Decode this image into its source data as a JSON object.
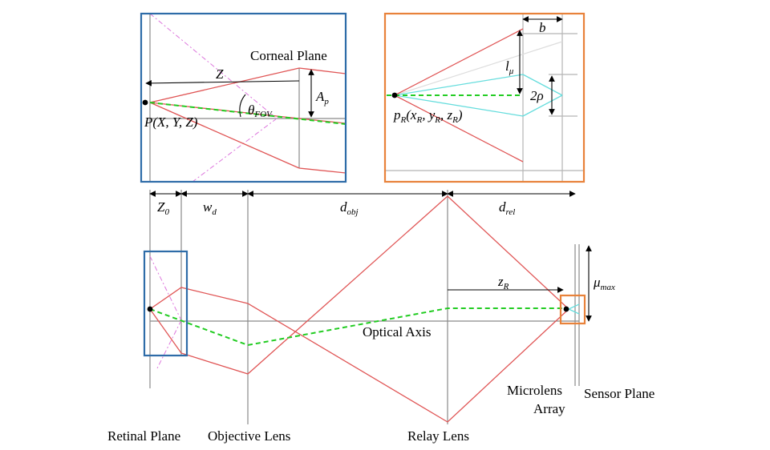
{
  "labels": {
    "corneal_plane": "Corneal Plane",
    "optical_axis": "Optical Axis",
    "retinal_plane": "Retinal Plane",
    "objective_lens": "Objective Lens",
    "relay_lens": "Relay Lens",
    "microlens_line1": "Microlens",
    "microlens_line2": "Array",
    "sensor_plane": "Sensor Plane"
  },
  "symbols": {
    "Z": "Z",
    "point_P": "P(X, Y, Z)",
    "theta": "θ",
    "theta_sub": "FOV",
    "A": "A",
    "A_sub": "p",
    "b": "b",
    "l": "l",
    "l_sub": "μ",
    "two_rho": "2ρ",
    "pR_main": "p",
    "pR_sub": "R",
    "pR_open": "(x",
    "pR_y": ", y",
    "pR_z": ", z",
    "pR_close": ")",
    "Z0": "Z",
    "Z0_sub": "0",
    "wd": "w",
    "wd_sub": "d",
    "dobj": "d",
    "dobj_sub": "obj",
    "drel": "d",
    "drel_sub": "rel",
    "zR": "z",
    "zR_sub": "R",
    "mu": "μ",
    "mu_sub": "max"
  },
  "colors": {
    "blue_box": "#2e6ca8",
    "orange_box": "#e8823a",
    "ray": "#e05555",
    "chief_ray": "#22cc22",
    "pink": "#dd77dd",
    "cyan": "#66dddd"
  }
}
